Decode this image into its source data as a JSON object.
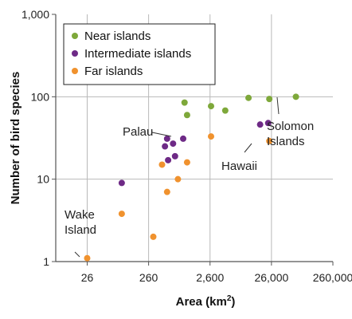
{
  "chart_data": {
    "type": "scatter",
    "x_scale": "log",
    "y_scale": "log",
    "xlabel": "Area (km",
    "xlabel_sup": "2",
    "xlabel_end": ")",
    "ylabel": "Number of bird species",
    "xlim": [
      8,
      260000
    ],
    "ylim": [
      1,
      1000
    ],
    "x_ticks": [
      {
        "value": 26,
        "label": "26"
      },
      {
        "value": 260,
        "label": "260"
      },
      {
        "value": 2600,
        "label": "2,600"
      },
      {
        "value": 26000,
        "label": "26,000"
      },
      {
        "value": 260000,
        "label": "260,000"
      }
    ],
    "y_ticks": [
      {
        "value": 1,
        "label": "1"
      },
      {
        "value": 10,
        "label": "10"
      },
      {
        "value": 100,
        "label": "100"
      },
      {
        "value": 1000,
        "label": "1,000"
      }
    ],
    "grid": true,
    "legend_position": "top-left",
    "colors": {
      "near": "#7ea83a",
      "intermediate": "#6e2a86",
      "far": "#f0922e",
      "grid": "#b9b9b9",
      "axis": "#555555"
    },
    "series": [
      {
        "name": "Near islands",
        "color_key": "near",
        "points": [
          {
            "x": 1000,
            "y": 85
          },
          {
            "x": 1100,
            "y": 60
          },
          {
            "x": 2700,
            "y": 77
          },
          {
            "x": 4600,
            "y": 68
          },
          {
            "x": 11000,
            "y": 97
          },
          {
            "x": 24000,
            "y": 94
          },
          {
            "x": 65000,
            "y": 100
          }
        ]
      },
      {
        "name": "Intermediate islands",
        "color_key": "intermediate",
        "points": [
          {
            "x": 95,
            "y": 9
          },
          {
            "x": 520,
            "y": 31
          },
          {
            "x": 480,
            "y": 25
          },
          {
            "x": 650,
            "y": 27
          },
          {
            "x": 950,
            "y": 31
          },
          {
            "x": 540,
            "y": 17
          },
          {
            "x": 700,
            "y": 19
          },
          {
            "x": 17000,
            "y": 46
          },
          {
            "x": 23000,
            "y": 48
          }
        ]
      },
      {
        "name": "Far islands",
        "color_key": "far",
        "points": [
          {
            "x": 26,
            "y": 1.1
          },
          {
            "x": 95,
            "y": 3.8
          },
          {
            "x": 310,
            "y": 2
          },
          {
            "x": 430,
            "y": 15
          },
          {
            "x": 520,
            "y": 7
          },
          {
            "x": 780,
            "y": 10
          },
          {
            "x": 1100,
            "y": 16
          },
          {
            "x": 2700,
            "y": 33
          },
          {
            "x": 24000,
            "y": 29
          }
        ]
      }
    ],
    "annotations": [
      {
        "text": [
          "Wake",
          "Island"
        ],
        "x": 26,
        "y": 1.1
      },
      {
        "text": [
          "Palau"
        ],
        "x": 520,
        "y": 31
      },
      {
        "text": [
          "Hawaii"
        ],
        "x": 24000,
        "y": 29
      },
      {
        "text": [
          "Solomon",
          "Islands"
        ],
        "x": 65000,
        "y": 100
      }
    ]
  }
}
